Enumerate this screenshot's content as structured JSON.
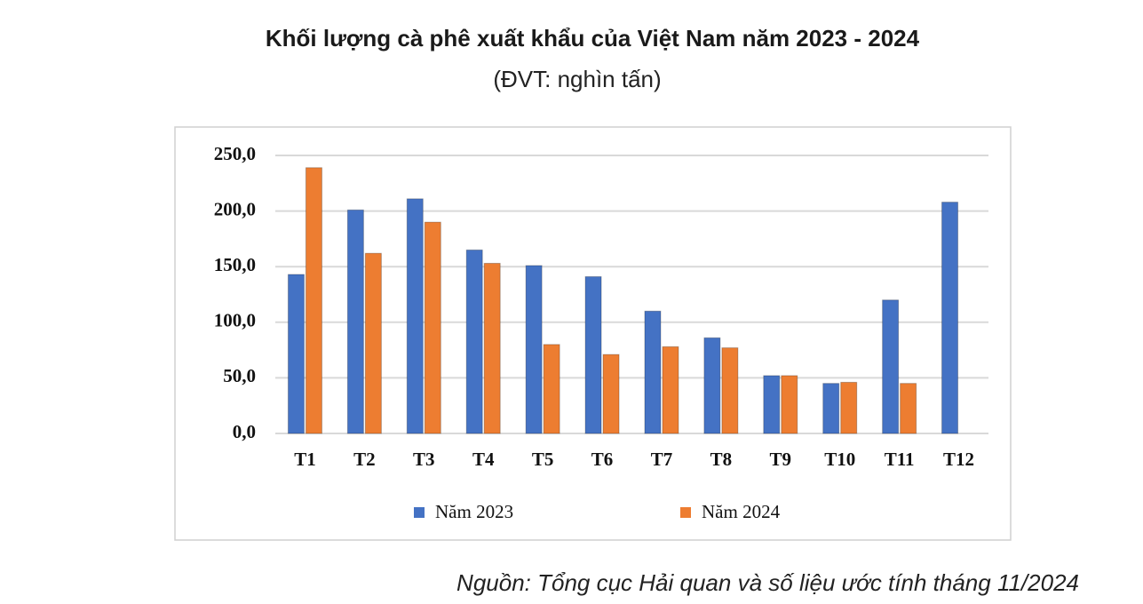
{
  "chart_data": {
    "type": "bar",
    "title": "Khối lượng cà phê xuất khẩu của Việt Nam năm 2023 - 2024",
    "subtitle": "(ĐVT: nghìn tấn)",
    "source": "Nguồn: Tổng cục Hải quan và số liệu ước tính tháng 11/2024",
    "categories": [
      "T1",
      "T2",
      "T3",
      "T4",
      "T5",
      "T6",
      "T7",
      "T8",
      "T9",
      "T10",
      "T11",
      "T12"
    ],
    "series": [
      {
        "name": "Năm 2023",
        "color": "#4472c4",
        "values": [
          143,
          201,
          211,
          165,
          151,
          141,
          110,
          86,
          52,
          45,
          120,
          208
        ]
      },
      {
        "name": "Năm 2024",
        "color": "#ed7d31",
        "values": [
          239,
          162,
          190,
          153,
          80,
          71,
          78,
          77,
          52,
          46,
          45,
          null
        ]
      }
    ],
    "ylim": [
      0,
      250
    ],
    "yticks": [
      {
        "value": 0,
        "label": "0,0"
      },
      {
        "value": 50,
        "label": "50,0"
      },
      {
        "value": 100,
        "label": "100,0"
      },
      {
        "value": 150,
        "label": "150,0"
      },
      {
        "value": 200,
        "label": "200,0"
      },
      {
        "value": 250,
        "label": "250,0"
      }
    ],
    "grid": true
  }
}
